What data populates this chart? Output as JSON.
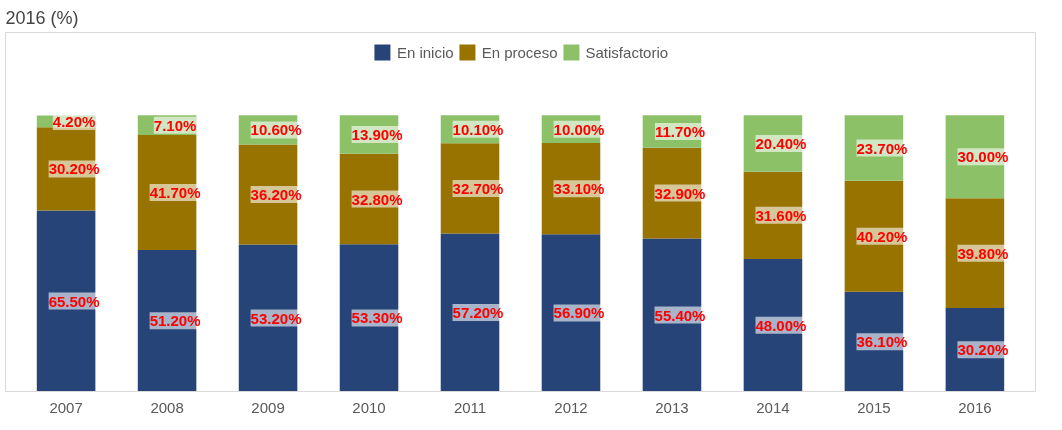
{
  "chart_data": {
    "type": "bar",
    "title": "2016 (%)",
    "stacked": true,
    "legend": "top",
    "grid": false,
    "categories": [
      "2007",
      "2008",
      "2009",
      "2010",
      "2011",
      "2012",
      "2013",
      "2014",
      "2015",
      "2016"
    ],
    "series": [
      {
        "name": "En inicio",
        "color": "#264478",
        "values": [
          65.5,
          51.2,
          53.2,
          53.3,
          57.2,
          56.9,
          55.4,
          48.0,
          36.1,
          30.2
        ],
        "value_labels": [
          "65.50%",
          "51.20%",
          "53.20%",
          "53.30%",
          "57.20%",
          "56.90%",
          "55.40%",
          "48.00%",
          "36.10%",
          "30.20%"
        ]
      },
      {
        "name": "En proceso",
        "color": "#997300",
        "values": [
          30.2,
          41.7,
          36.2,
          32.8,
          32.7,
          33.1,
          32.9,
          31.6,
          40.2,
          39.8
        ],
        "value_labels": [
          "30.20%",
          "41.70%",
          "36.20%",
          "32.80%",
          "32.70%",
          "33.10%",
          "32.90%",
          "31.60%",
          "40.20%",
          "39.80%"
        ]
      },
      {
        "name": "Satisfactorio",
        "color": "#8cc168",
        "values": [
          4.2,
          7.1,
          10.6,
          13.9,
          10.1,
          10.0,
          11.7,
          20.4,
          23.7,
          30.0
        ],
        "value_labels": [
          "4.20%",
          "7.10%",
          "10.60%",
          "13.90%",
          "10.10%",
          "10.00%",
          "11.70%",
          "20.40%",
          "23.70%",
          "30.00%"
        ]
      }
    ]
  }
}
